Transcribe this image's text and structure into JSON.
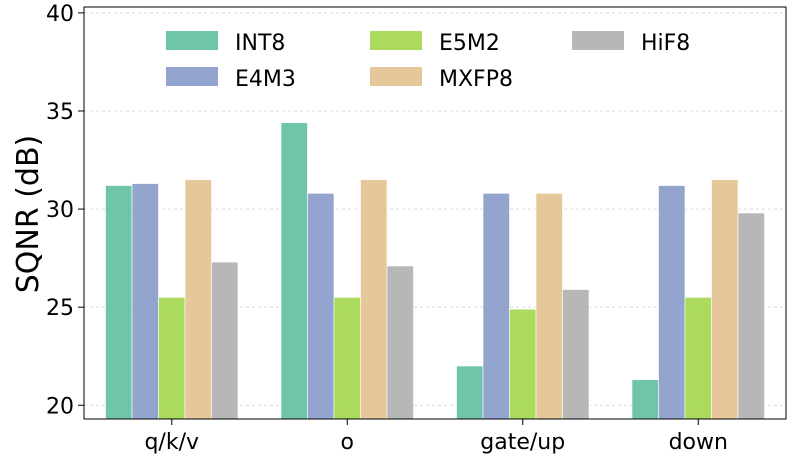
{
  "chart_data": {
    "type": "bar",
    "title": "",
    "xlabel": "",
    "ylabel": "SQNR (dB)",
    "ylim": [
      19.3,
      40.3
    ],
    "yticks": [
      "20",
      "25",
      "30",
      "35",
      "40"
    ],
    "categories": [
      "q/k/v",
      "o",
      "gate/up",
      "down"
    ],
    "series": [
      {
        "name": "INT8",
        "color": "#66c2a5",
        "values": [
          31.2,
          34.4,
          22.0,
          21.3
        ]
      },
      {
        "name": "E4M3",
        "color": "#8da0cb",
        "values": [
          31.3,
          30.8,
          30.8,
          31.2
        ]
      },
      {
        "name": "E5M2",
        "color": "#a6d854",
        "values": [
          25.5,
          25.5,
          24.9,
          25.5
        ]
      },
      {
        "name": "MXFP8",
        "color": "#e5c494",
        "values": [
          31.5,
          31.5,
          30.8,
          31.5
        ]
      },
      {
        "name": "HiF8",
        "color": "#b3b3b3",
        "values": [
          27.3,
          27.1,
          25.9,
          29.8
        ]
      }
    ],
    "legend": {
      "placement": "top",
      "columns": [
        [
          "INT8",
          "E4M3"
        ],
        [
          "E5M2",
          "MXFP8"
        ],
        [
          "HiF8"
        ]
      ]
    },
    "grid": "y-dashed"
  }
}
